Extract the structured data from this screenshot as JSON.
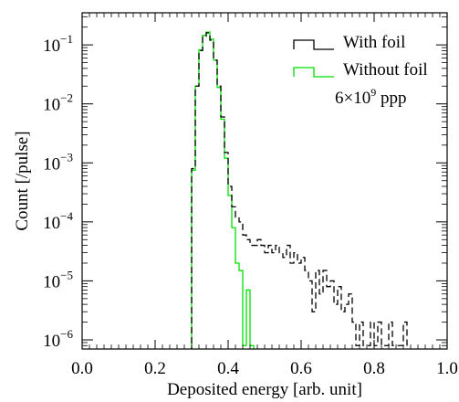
{
  "chart_data": {
    "type": "line",
    "step": true,
    "xlabel": "Deposited energy [arb. unit]",
    "ylabel": "Count [/pulse]",
    "xlim": [
      0.0,
      1.0
    ],
    "ylim": [
      7e-07,
      0.35
    ],
    "yscale": "log",
    "grid": false,
    "legend_position": "top-right",
    "annotation": {
      "base": "6×10",
      "sup": "9",
      "suffix": " ppp"
    },
    "x_ticks": [
      {
        "v": 0.0,
        "label": "0.0"
      },
      {
        "v": 0.2,
        "label": "0.2"
      },
      {
        "v": 0.4,
        "label": "0.4"
      },
      {
        "v": 0.6,
        "label": "0.6"
      },
      {
        "v": 0.8,
        "label": "0.8"
      },
      {
        "v": 1.0,
        "label": "1.0"
      }
    ],
    "y_ticks": [
      {
        "v": 1e-06,
        "base": "10",
        "exp": "−6"
      },
      {
        "v": 1e-05,
        "base": "10",
        "exp": "−5"
      },
      {
        "v": 0.0001,
        "base": "10",
        "exp": "−4"
      },
      {
        "v": 0.001,
        "base": "10",
        "exp": "−3"
      },
      {
        "v": 0.01,
        "base": "10",
        "exp": "−2"
      },
      {
        "v": 0.1,
        "base": "10",
        "exp": "−1"
      }
    ],
    "series": [
      {
        "name": "With foil",
        "color": "#000000",
        "dashed": true,
        "x": [
          0.305,
          0.315,
          0.325,
          0.335,
          0.345,
          0.355,
          0.365,
          0.375,
          0.385,
          0.395,
          0.405,
          0.415,
          0.425,
          0.435,
          0.445,
          0.455,
          0.465,
          0.475,
          0.485,
          0.495,
          0.505,
          0.515,
          0.525,
          0.535,
          0.545,
          0.555,
          0.565,
          0.575,
          0.585,
          0.595,
          0.605,
          0.615,
          0.625,
          0.635,
          0.645,
          0.655,
          0.665,
          0.675,
          0.685,
          0.695,
          0.705,
          0.715,
          0.725,
          0.735,
          0.745,
          0.755,
          0.765,
          0.775,
          0.785,
          0.795,
          0.805,
          0.815,
          0.825,
          0.835,
          0.845,
          0.855,
          0.865,
          0.875,
          0.885
        ],
        "y": [
          0.0008,
          0.02,
          0.08,
          0.14,
          0.16,
          0.12,
          0.055,
          0.02,
          0.006,
          0.0015,
          0.0004,
          0.00018,
          0.00012,
          0.0001,
          6e-05,
          5e-05,
          4e-05,
          4e-05,
          5e-05,
          4e-05,
          3e-05,
          4e-05,
          3e-05,
          4e-05,
          3e-05,
          2.5e-05,
          4e-05,
          2e-05,
          3e-05,
          2e-05,
          2.5e-05,
          1.5e-05,
          1e-05,
          3e-06,
          1.5e-05,
          6e-06,
          1.5e-05,
          8e-06,
          1e-05,
          4e-06,
          8e-06,
          3e-06,
          4e-06,
          6e-06,
          2e-06,
          8e-07,
          2e-06,
          8e-07,
          8e-07,
          2e-06,
          8e-07,
          2e-06,
          8e-07,
          8e-07,
          2e-06,
          8e-07,
          8e-07,
          8e-07,
          2e-06
        ]
      },
      {
        "name": "Without foil",
        "color": "#00e000",
        "dashed": false,
        "x": [
          0.305,
          0.315,
          0.325,
          0.335,
          0.345,
          0.355,
          0.365,
          0.375,
          0.385,
          0.395,
          0.405,
          0.415,
          0.425,
          0.435,
          0.445,
          0.455,
          0.465
        ],
        "y": [
          0.00075,
          0.02,
          0.082,
          0.145,
          0.165,
          0.125,
          0.055,
          0.019,
          0.0055,
          0.0012,
          0.00028,
          8e-05,
          2e-05,
          1.5e-05,
          8e-07,
          7e-06,
          8e-07
        ]
      }
    ]
  }
}
